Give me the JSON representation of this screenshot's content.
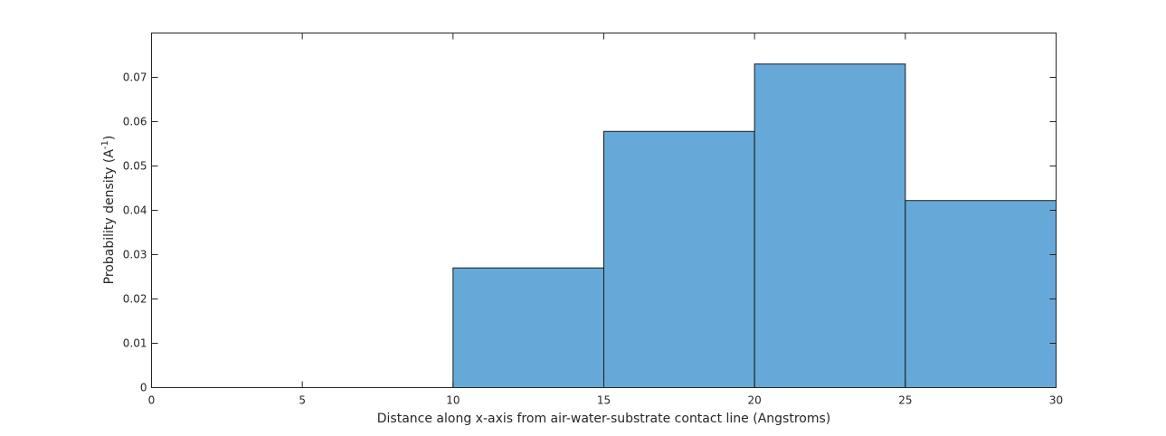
{
  "chart_data": {
    "type": "bar",
    "title": "",
    "xlabel": "Distance along x-axis from air-water-substrate contact line (Angstroms)",
    "ylabel_main": "Probability density (A",
    "ylabel_sup": "-1",
    "ylabel_tail": ")",
    "xlim": [
      0,
      30
    ],
    "ylim": [
      0,
      0.08
    ],
    "xticks": [
      0,
      5,
      10,
      15,
      20,
      25,
      30
    ],
    "xtick_labels": [
      "0",
      "5",
      "10",
      "15",
      "20",
      "25",
      "30"
    ],
    "yticks": [
      0,
      0.01,
      0.02,
      0.03,
      0.04,
      0.05,
      0.06,
      0.07
    ],
    "ytick_labels": [
      "0",
      "0.01",
      "0.02",
      "0.03",
      "0.04",
      "0.05",
      "0.06",
      "0.07"
    ],
    "bin_edges": [
      10,
      15,
      20,
      25,
      30
    ],
    "values": [
      0.027,
      0.0578,
      0.073,
      0.0422
    ],
    "bar_color": "#66a9d8",
    "edge_color": "#1a1a1a",
    "grid": false
  }
}
